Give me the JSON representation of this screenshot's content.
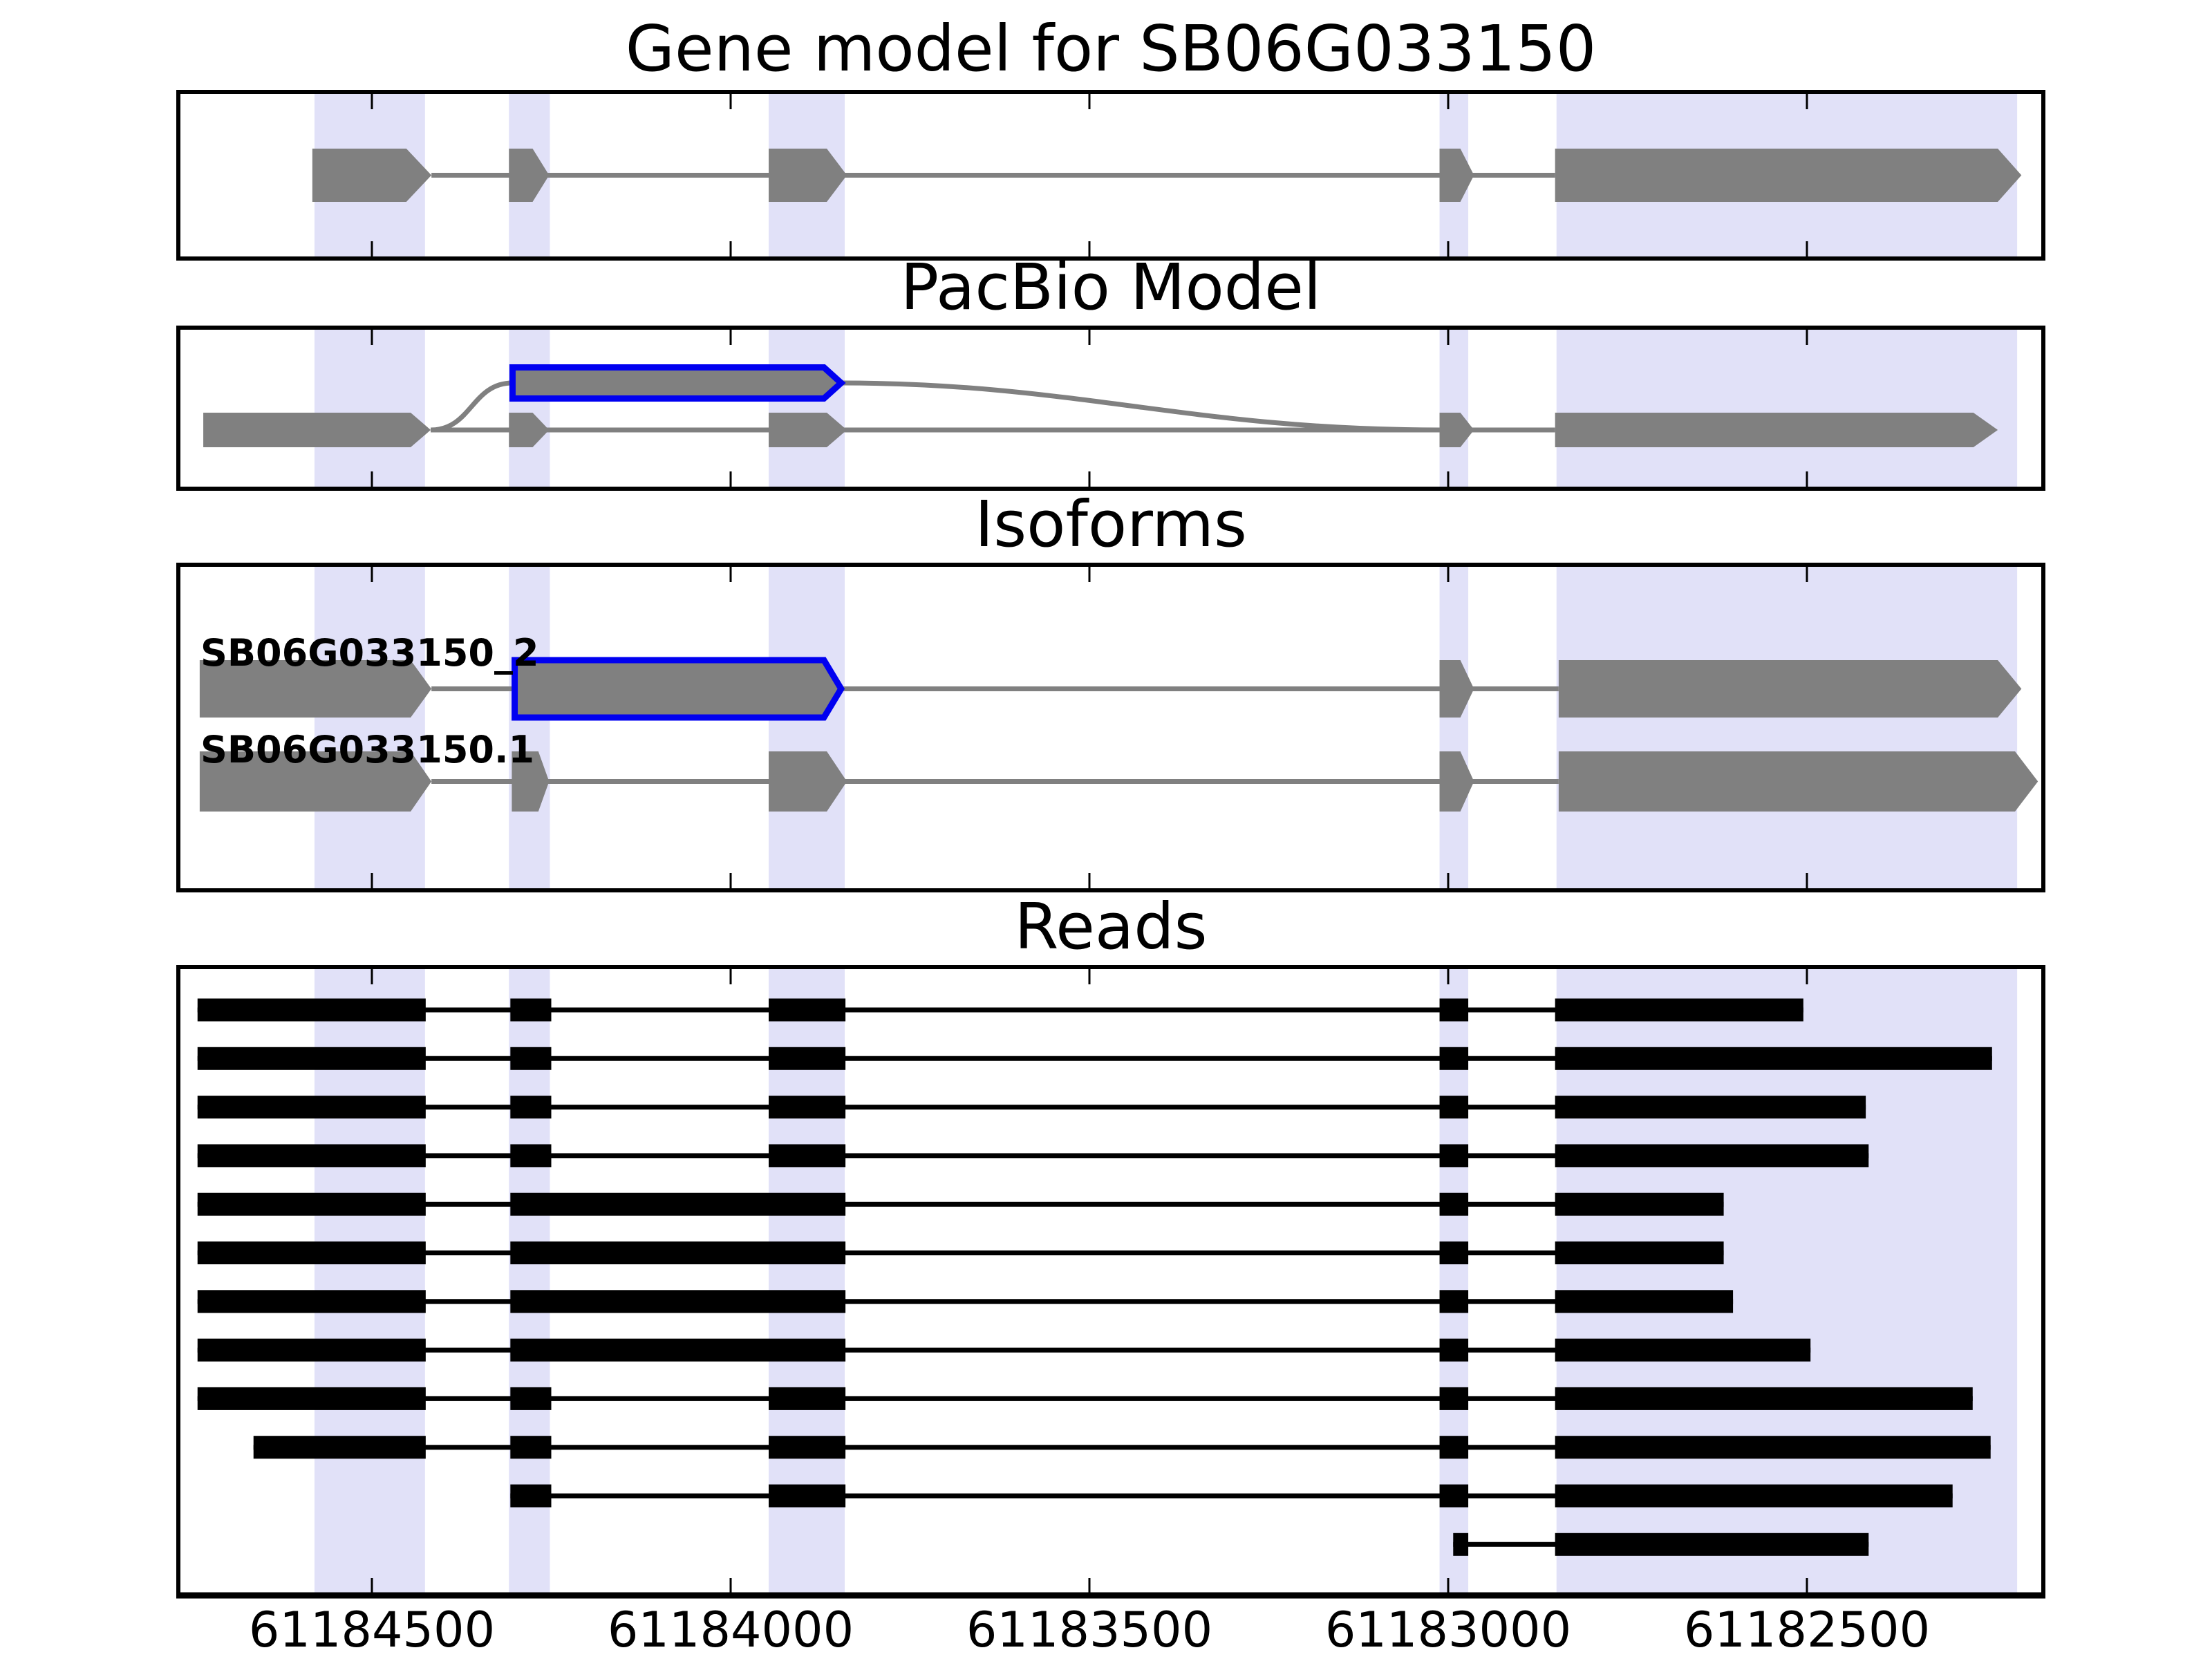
{
  "chart_data": {
    "type": "genome-browser",
    "x_axis": {
      "ticks": [
        61184500,
        61184000,
        61183500,
        61183000,
        61182500
      ],
      "labels": [
        "61184500",
        "61184000",
        "61183500",
        "61183000",
        "61182500"
      ],
      "range": [
        61184770,
        61182170
      ],
      "reversed": true
    },
    "highlight_regions_bp": [
      [
        61184580,
        61184426
      ],
      [
        61184309,
        61184252
      ],
      [
        61183947,
        61183841
      ],
      [
        61183012,
        61182972
      ],
      [
        61182849,
        61182207
      ]
    ],
    "colors": {
      "highlight_band": "#e1e1f8",
      "gene_gray": "#808080",
      "novel_outline_blue": "#0000f0",
      "read_black": "#000000",
      "frame_black": "#000000"
    },
    "panels": [
      {
        "id": "gene_model",
        "title": "Gene model for SB06G033150",
        "transcripts": [
          {
            "exons": [
              {
                "start": 61184583,
                "end": 61184452,
                "tip": 61184417
              },
              {
                "start": 61184309,
                "end": 61184276,
                "tip": 61184253
              },
              {
                "start": 61183947,
                "end": 61183866,
                "tip": 61183838
              },
              {
                "start": 61183012,
                "end": 61182983,
                "tip": 61182964
              },
              {
                "start": 61182851,
                "end": 61182234,
                "tip": 61182201
              }
            ]
          }
        ]
      },
      {
        "id": "pacbio_model",
        "title": "PacBio Model",
        "transcripts": [
          {
            "exons": [
              {
                "start": 61184735,
                "end": 61184446,
                "tip": 61184418
              },
              {
                "start": 61184309,
                "end": 61184276,
                "tip": 61184253
              },
              {
                "start": 61183947,
                "end": 61183866,
                "tip": 61183838
              },
              {
                "start": 61183012,
                "end": 61182983,
                "tip": 61182964
              },
              {
                "start": 61182851,
                "end": 61182268,
                "tip": 61182234
              }
            ]
          }
        ],
        "novel_exon": {
          "start": 61184304,
          "end": 61183870,
          "tip": 61183846,
          "outline": "blue"
        }
      },
      {
        "id": "isoforms",
        "title": "Isoforms",
        "transcripts": [
          {
            "name": "SB06G033150_2",
            "exons": [
              {
                "start": 61184740,
                "end": 61184446,
                "tip": 61184417
              },
              {
                "start": 61183012,
                "end": 61182983,
                "tip": 61182964
              },
              {
                "start": 61182846,
                "end": 61182234,
                "tip": 61182201
              }
            ],
            "novel_exon": {
              "start": 61184301,
              "end": 61183870,
              "tip": 61183846,
              "outline": "blue"
            }
          },
          {
            "name": "SB06G033150.1",
            "exons": [
              {
                "start": 61184740,
                "end": 61184446,
                "tip": 61184417
              },
              {
                "start": 61184305,
                "end": 61184268,
                "tip": 61184253
              },
              {
                "start": 61183947,
                "end": 61183866,
                "tip": 61183838
              },
              {
                "start": 61183012,
                "end": 61182983,
                "tip": 61182964
              },
              {
                "start": 61182846,
                "end": 61182210,
                "tip": 61182178
              }
            ]
          }
        ]
      },
      {
        "id": "reads",
        "title": "Reads",
        "reads": [
          {
            "blocks": [
              [
                61184743,
                61184425
              ],
              [
                61184307,
                61184250
              ],
              [
                61183947,
                61183840
              ],
              [
                61183012,
                61182972
              ],
              [
                61182851,
                61182505
              ]
            ]
          },
          {
            "blocks": [
              [
                61184743,
                61184425
              ],
              [
                61184307,
                61184250
              ],
              [
                61183947,
                61183840
              ],
              [
                61183012,
                61182972
              ],
              [
                61182851,
                61182242
              ]
            ]
          },
          {
            "blocks": [
              [
                61184743,
                61184425
              ],
              [
                61184307,
                61184250
              ],
              [
                61183947,
                61183840
              ],
              [
                61183012,
                61182972
              ],
              [
                61182851,
                61182418
              ]
            ]
          },
          {
            "blocks": [
              [
                61184743,
                61184425
              ],
              [
                61184307,
                61184250
              ],
              [
                61183947,
                61183840
              ],
              [
                61183012,
                61182972
              ],
              [
                61182851,
                61182414
              ]
            ]
          },
          {
            "blocks": [
              [
                61184743,
                61184425
              ],
              [
                61184307,
                61183840
              ],
              [
                61183012,
                61182972
              ],
              [
                61182851,
                61182616
              ]
            ]
          },
          {
            "blocks": [
              [
                61184743,
                61184425
              ],
              [
                61184307,
                61183840
              ],
              [
                61183012,
                61182972
              ],
              [
                61182851,
                61182616
              ]
            ]
          },
          {
            "blocks": [
              [
                61184743,
                61184425
              ],
              [
                61184307,
                61183840
              ],
              [
                61183012,
                61182972
              ],
              [
                61182851,
                61182603
              ]
            ]
          },
          {
            "blocks": [
              [
                61184743,
                61184425
              ],
              [
                61184307,
                61183840
              ],
              [
                61183012,
                61182972
              ],
              [
                61182851,
                61182495
              ]
            ]
          },
          {
            "blocks": [
              [
                61184743,
                61184425
              ],
              [
                61184307,
                61184250
              ],
              [
                61183947,
                61183840
              ],
              [
                61183012,
                61182972
              ],
              [
                61182851,
                61182269
              ]
            ]
          },
          {
            "blocks": [
              [
                61184665,
                61184425
              ],
              [
                61184307,
                61184250
              ],
              [
                61183947,
                61183840
              ],
              [
                61183012,
                61182972
              ],
              [
                61182851,
                61182244
              ]
            ]
          },
          {
            "blocks": [
              [
                61184307,
                61184250
              ],
              [
                61183947,
                61183840
              ],
              [
                61183012,
                61182972
              ],
              [
                61182851,
                61182297
              ]
            ]
          },
          {
            "blocks": [
              [
                61182993,
                61182972
              ],
              [
                61182851,
                61182414
              ]
            ]
          }
        ]
      }
    ]
  }
}
